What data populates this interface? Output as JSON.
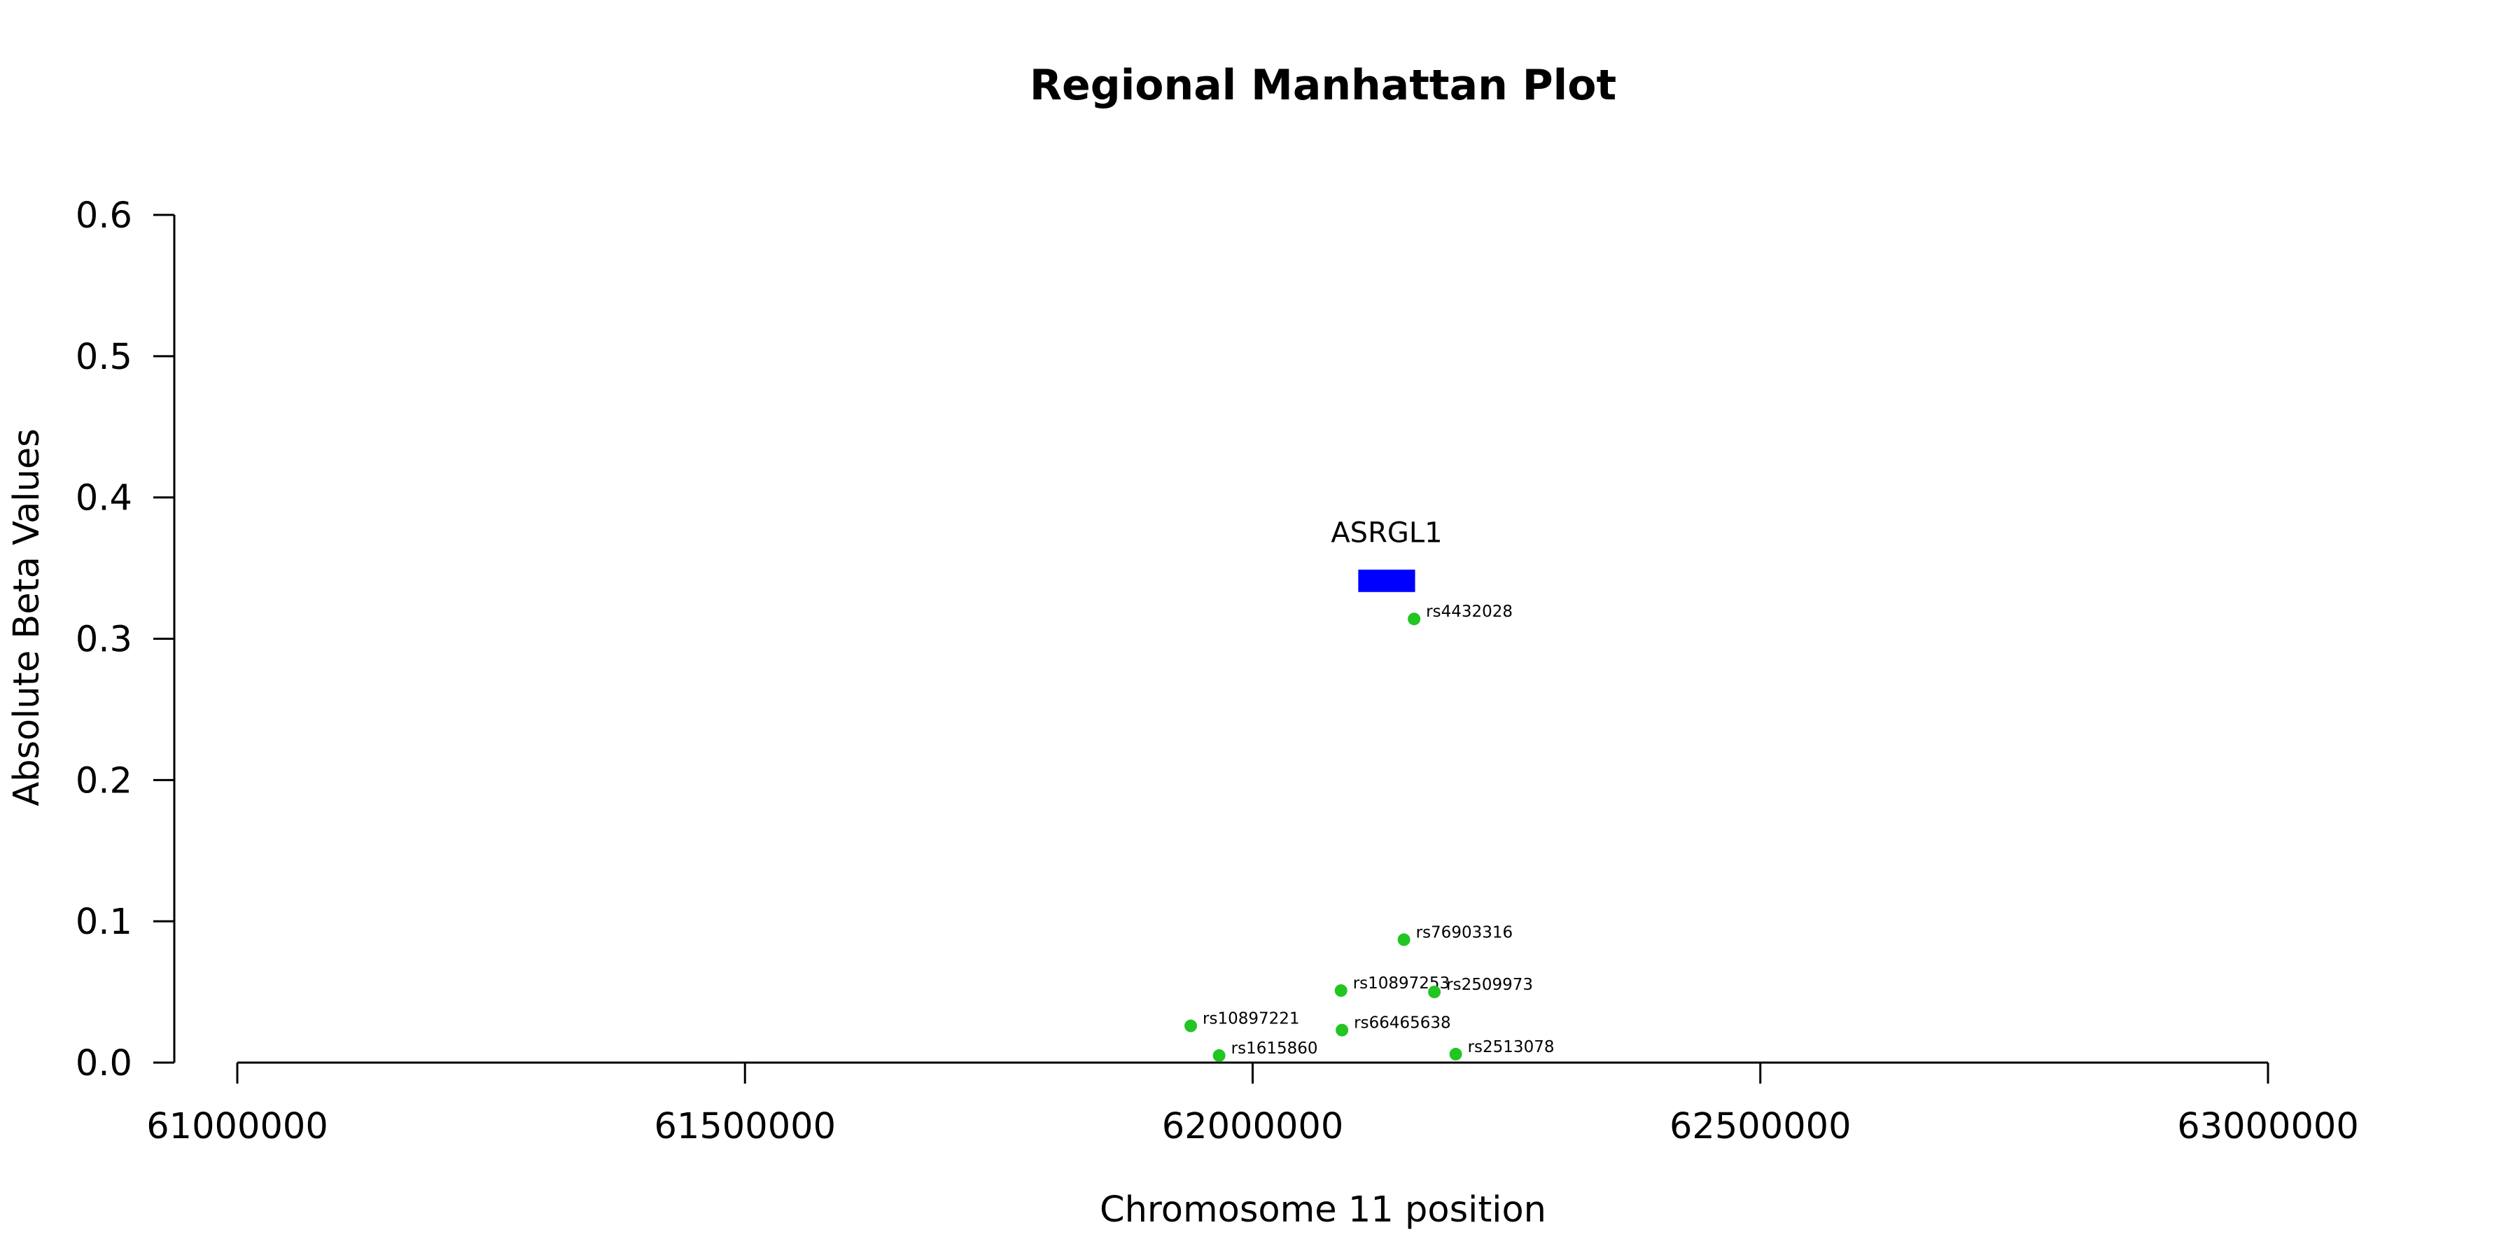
{
  "chart_data": {
    "type": "scatter",
    "title": "Regional Manhattan Plot",
    "xlabel": "Chromosome 11 position",
    "ylabel": "Absolute Beta Values",
    "xlim": [
      61000000,
      63000000
    ],
    "ylim": [
      0,
      0.6
    ],
    "xticks": [
      61000000,
      61500000,
      62000000,
      62500000,
      63000000
    ],
    "xtick_labels": [
      "61000000",
      "61500000",
      "62000000",
      "62500000",
      "63000000"
    ],
    "yticks": [
      0,
      0.1,
      0.2,
      0.3,
      0.4,
      0.5,
      0.6
    ],
    "ytick_labels": [
      "0.0",
      "0.1",
      "0.2",
      "0.3",
      "0.4",
      "0.5",
      "0.6"
    ],
    "grid": false,
    "point_color": "#22c522",
    "points": [
      {
        "label": "rs4432028",
        "x": 62159000,
        "y": 0.314
      },
      {
        "label": "rs76903316",
        "x": 62149000,
        "y": 0.087
      },
      {
        "label": "rs10897253",
        "x": 62087000,
        "y": 0.051
      },
      {
        "label": "rs2509973",
        "x": 62179000,
        "y": 0.05
      },
      {
        "label": "rs10897221",
        "x": 61939000,
        "y": 0.026
      },
      {
        "label": "rs66465638",
        "x": 62088000,
        "y": 0.023
      },
      {
        "label": "rs1615860",
        "x": 61967000,
        "y": 0.005
      },
      {
        "label": "rs2513078",
        "x": 62200000,
        "y": 0.006
      }
    ],
    "genes": [
      {
        "name": "ASRGL1",
        "start": 62104000,
        "end": 62160000,
        "y": 0.341,
        "color": "#0000ff"
      }
    ]
  }
}
